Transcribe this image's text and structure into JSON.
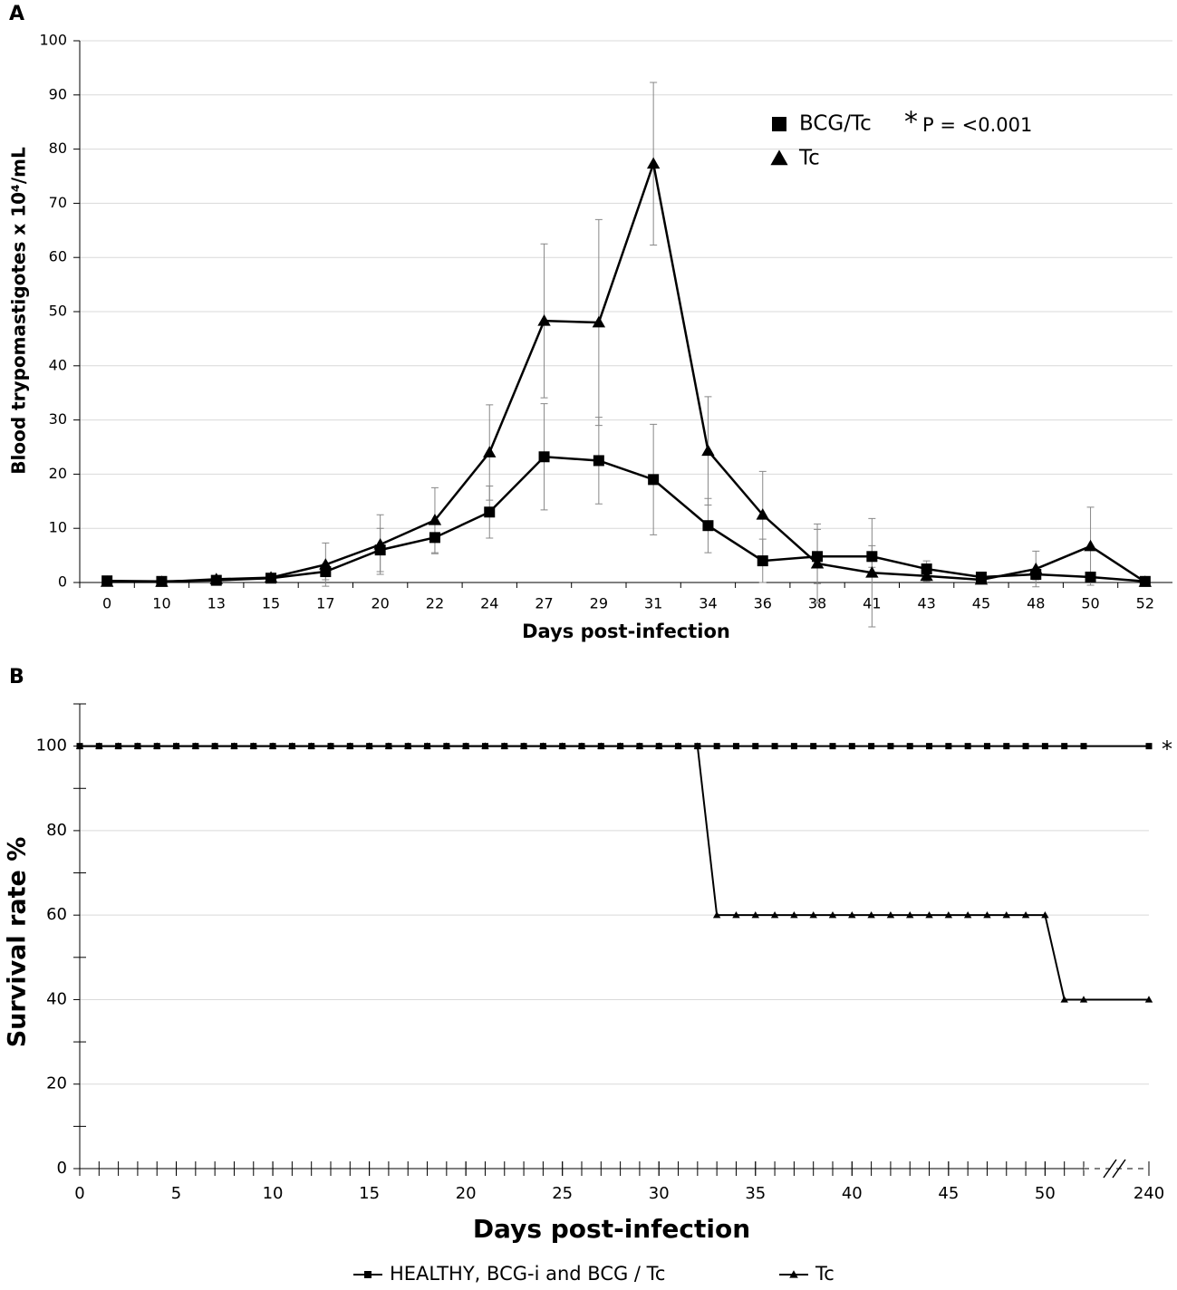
{
  "chart_data": [
    {
      "type": "line",
      "panel": "A",
      "categories": [
        "0",
        "10",
        "13",
        "15",
        "17",
        "20",
        "22",
        "24",
        "27",
        "29",
        "31",
        "34",
        "36",
        "38",
        "41",
        "43",
        "45",
        "48",
        "50",
        "52"
      ],
      "ylim": [
        0,
        100
      ],
      "yticks": [
        0,
        10,
        20,
        30,
        40,
        50,
        60,
        70,
        80,
        90,
        100
      ],
      "grid": true,
      "x_label": "Days post-infection",
      "y_label": "Blood trypomastigotes x 10⁴/mL",
      "annotation_mark": "*",
      "annotation": "P = <0.001",
      "series": [
        {
          "name": "BCG/Tc",
          "color": "#000000",
          "marker": "square",
          "values": [
            0.3,
            0.2,
            0.4,
            0.8,
            2,
            6,
            8.3,
            13,
            23.2,
            22.5,
            19,
            10.5,
            4,
            4.8,
            4.8,
            2.5,
            1,
            1.5,
            1,
            0.2
          ],
          "errors": [
            0,
            0,
            0.3,
            0.3,
            1.5,
            4,
            3,
            4.8,
            9.8,
            8,
            10.2,
            5,
            4,
            5,
            2,
            1.5,
            0.5,
            1,
            0.5,
            0
          ]
        },
        {
          "name": "Tc",
          "color": "#000000",
          "marker": "triangle",
          "values": [
            0.1,
            0.1,
            0.6,
            0.9,
            3.3,
            7,
            11.5,
            24,
            48.3,
            48,
            77.3,
            24.3,
            12.5,
            3.5,
            1.8,
            1.2,
            0.5,
            2.5,
            6.7,
            0.1
          ],
          "errors": [
            0,
            0,
            0.3,
            0.3,
            4,
            5.5,
            6,
            8.8,
            14.2,
            19,
            15,
            10,
            8,
            7.3,
            10,
            1,
            0.3,
            3.3,
            7.2,
            0
          ]
        }
      ]
    },
    {
      "type": "line",
      "panel": "B",
      "x": [
        0,
        1,
        2,
        3,
        4,
        5,
        6,
        7,
        8,
        9,
        10,
        11,
        12,
        13,
        14,
        15,
        16,
        17,
        18,
        19,
        20,
        21,
        22,
        23,
        24,
        25,
        26,
        27,
        28,
        29,
        30,
        31,
        32,
        33,
        34,
        35,
        36,
        37,
        38,
        39,
        40,
        41,
        42,
        43,
        44,
        45,
        46,
        47,
        48,
        49,
        50,
        51,
        52,
        240
      ],
      "xlim": [
        0,
        240
      ],
      "xticks": [
        0,
        5,
        10,
        15,
        20,
        25,
        30,
        35,
        40,
        45,
        50,
        240
      ],
      "axis_break": [
        52,
        240
      ],
      "ylim": [
        0,
        110
      ],
      "yticks": [
        0,
        20,
        40,
        60,
        80,
        100
      ],
      "grid": true,
      "x_label": "Days post-infection",
      "y_label": "Survival rate %",
      "annotation": "*",
      "series": [
        {
          "name": "HEALTHY, BCG-i and BCG / Tc",
          "color": "#000000",
          "marker": "square",
          "values": [
            100,
            100,
            100,
            100,
            100,
            100,
            100,
            100,
            100,
            100,
            100,
            100,
            100,
            100,
            100,
            100,
            100,
            100,
            100,
            100,
            100,
            100,
            100,
            100,
            100,
            100,
            100,
            100,
            100,
            100,
            100,
            100,
            100,
            100,
            100,
            100,
            100,
            100,
            100,
            100,
            100,
            100,
            100,
            100,
            100,
            100,
            100,
            100,
            100,
            100,
            100,
            100,
            100,
            100
          ]
        },
        {
          "name": "Tc",
          "color": "#000000",
          "marker": "triangle",
          "values": [
            100,
            100,
            100,
            100,
            100,
            100,
            100,
            100,
            100,
            100,
            100,
            100,
            100,
            100,
            100,
            100,
            100,
            100,
            100,
            100,
            100,
            100,
            100,
            100,
            100,
            100,
            100,
            100,
            100,
            100,
            100,
            100,
            100,
            60,
            60,
            60,
            60,
            60,
            60,
            60,
            60,
            60,
            60,
            60,
            60,
            60,
            60,
            60,
            60,
            60,
            60,
            40,
            40,
            40
          ]
        }
      ]
    }
  ]
}
